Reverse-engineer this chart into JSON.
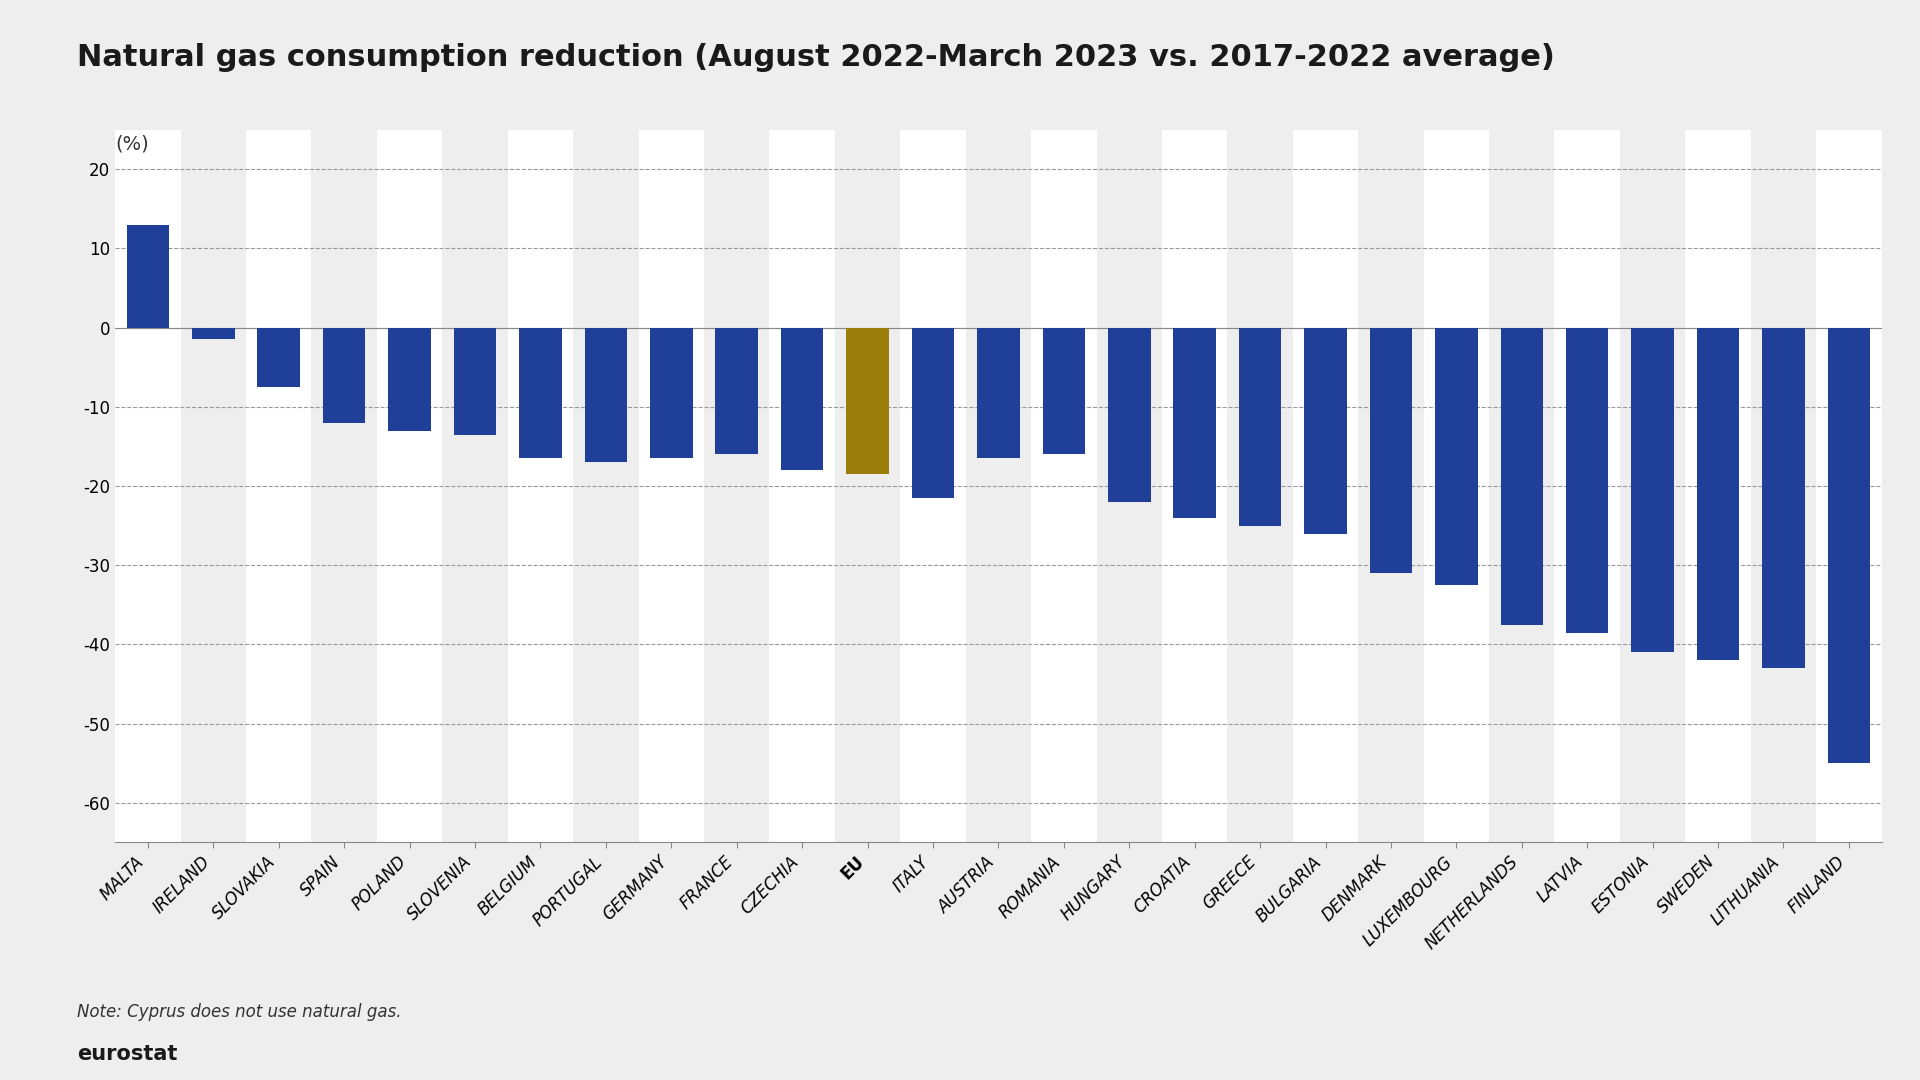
{
  "categories": [
    "MALTA",
    "IRELAND",
    "SLOVAKIA",
    "SPAIN",
    "POLAND",
    "SLOVENIA",
    "BELGIUM",
    "PORTUGAL",
    "GERMANY",
    "FRANCE",
    "CZECHIA",
    "EU",
    "ITALY",
    "AUSTRIA",
    "ROMANIA",
    "HUNGARY",
    "CROATIA",
    "GREECE",
    "BULGARIA",
    "DENMARK",
    "LUXEMBOURG",
    "NETHERLANDS",
    "LATVIA",
    "ESTONIA",
    "SWEDEN",
    "LITHUANIA",
    "FINLAND"
  ],
  "values": [
    13.0,
    -1.5,
    -7.5,
    -12.0,
    -13.0,
    -13.5,
    -16.5,
    -17.0,
    -16.5,
    -16.0,
    -18.0,
    -18.5,
    -21.5,
    -16.5,
    -16.0,
    -22.0,
    -24.0,
    -25.0,
    -26.0,
    -31.0,
    -32.5,
    -37.5,
    -38.5,
    -41.0,
    -42.0,
    -43.0,
    -55.0
  ],
  "bar_colors": [
    "#1f3f99",
    "#1f3f99",
    "#1f3f99",
    "#1f3f99",
    "#1f3f99",
    "#1f3f99",
    "#1f3f99",
    "#1f3f99",
    "#1f3f99",
    "#1f3f99",
    "#1f3f99",
    "#9a7d0a",
    "#1f3f99",
    "#1f3f99",
    "#1f3f99",
    "#1f3f99",
    "#1f3f99",
    "#1f3f99",
    "#1f3f99",
    "#1f3f99",
    "#1f3f99",
    "#1f3f99",
    "#1f3f99",
    "#1f3f99",
    "#1f3f99",
    "#1f3f99",
    "#1f3f99"
  ],
  "title": "Natural gas consumption reduction (August 2022-March 2023 vs. 2017-2022 average)",
  "ylabel": "(%)",
  "ylim": [
    -65,
    25
  ],
  "yticks": [
    20,
    10,
    0,
    -10,
    -20,
    -30,
    -40,
    -50,
    -60
  ],
  "background_color": "#eeeeee",
  "stripe_color_even": "#ffffff",
  "stripe_color_odd": "#eeeeee",
  "note": "Note: Cyprus does not use natural gas.",
  "title_fontsize": 22,
  "ylabel_fontsize": 14,
  "tick_fontsize": 12,
  "note_fontsize": 12
}
